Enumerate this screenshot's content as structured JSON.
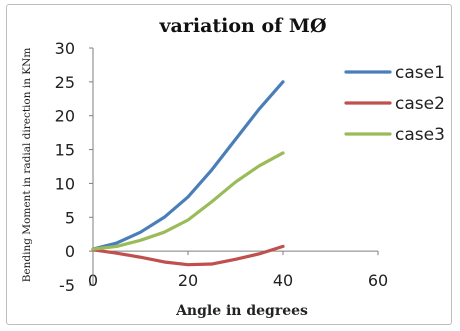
{
  "chart_data": {
    "type": "line",
    "title": "variation of MØ",
    "xlabel": "Angle in degrees",
    "ylabel": "Bending Moment in radial direction in KNm",
    "xlim": [
      0,
      60
    ],
    "ylim": [
      -5,
      30
    ],
    "x_ticks": [
      0,
      20,
      40,
      60
    ],
    "y_ticks": [
      -5,
      0,
      5,
      10,
      15,
      20,
      25,
      30
    ],
    "x": [
      0,
      5,
      10,
      15,
      20,
      25,
      30,
      35,
      40
    ],
    "series": [
      {
        "name": "case1",
        "color": "#4a7ebb",
        "values": [
          0.3,
          1.2,
          2.8,
          5.0,
          8.0,
          12.0,
          16.5,
          21.0,
          25.0
        ]
      },
      {
        "name": "case2",
        "color": "#c0504d",
        "values": [
          0.2,
          -0.3,
          -0.9,
          -1.6,
          -2.0,
          -1.9,
          -1.2,
          -0.4,
          0.7
        ]
      },
      {
        "name": "case3",
        "color": "#9bbb59",
        "values": [
          0.3,
          0.7,
          1.6,
          2.8,
          4.6,
          7.3,
          10.2,
          12.6,
          14.5
        ]
      }
    ],
    "grid": false,
    "legend": "right"
  }
}
